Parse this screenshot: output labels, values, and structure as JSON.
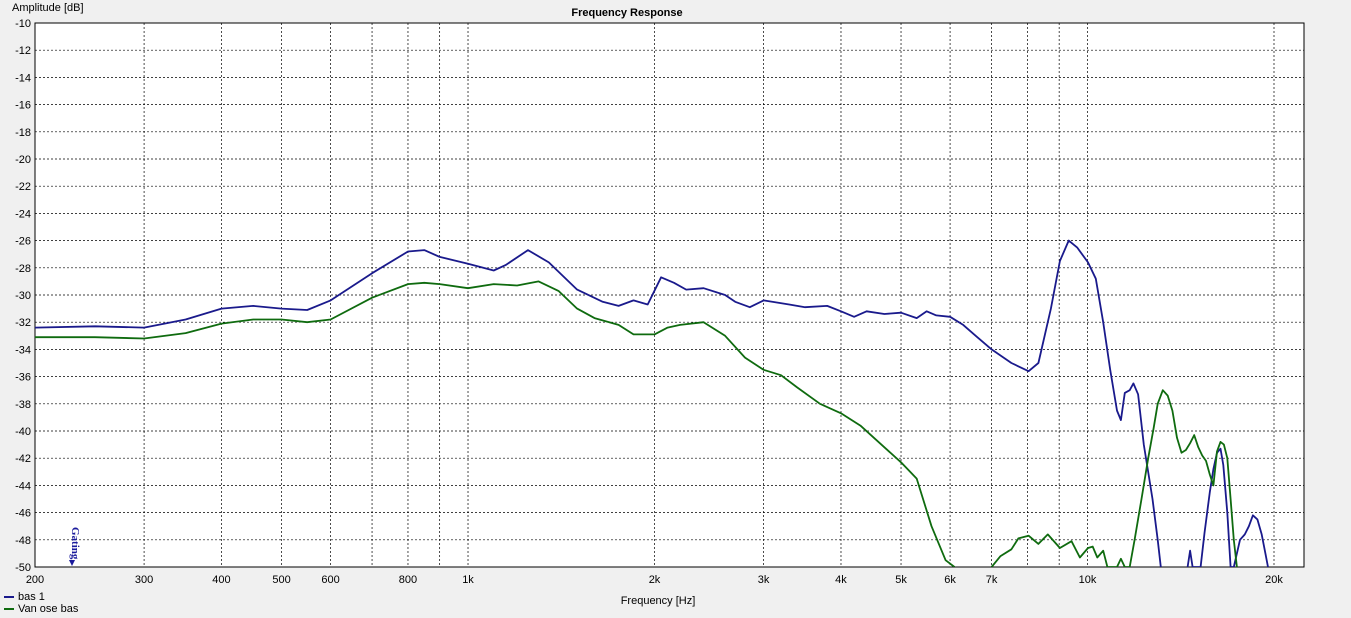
{
  "chart_data": {
    "type": "line",
    "title": "Frequency Response",
    "xlabel": "Frequency [Hz]",
    "ylabel": "Amplitude [dB]",
    "xscale": "log",
    "xlim": [
      200,
      20000
    ],
    "ylim": [
      -50,
      -10
    ],
    "grid": true,
    "legend_position": "bottom-left",
    "y_ticks": [
      "-10",
      "-12",
      "-14",
      "-16",
      "-18",
      "-20",
      "-22",
      "-24",
      "-26",
      "-28",
      "-30",
      "-32",
      "-34",
      "-36",
      "-38",
      "-40",
      "-42",
      "-44",
      "-46",
      "-48",
      "-50"
    ],
    "x_ticks": [
      {
        "value": 200,
        "label": "200"
      },
      {
        "value": 300,
        "label": "300"
      },
      {
        "value": 400,
        "label": "400"
      },
      {
        "value": 500,
        "label": "500"
      },
      {
        "value": 600,
        "label": "600"
      },
      {
        "value": 800,
        "label": "800"
      },
      {
        "value": 1000,
        "label": "1k"
      },
      {
        "value": 2000,
        "label": "2k"
      },
      {
        "value": 3000,
        "label": "3k"
      },
      {
        "value": 4000,
        "label": "4k"
      },
      {
        "value": 5000,
        "label": "5k"
      },
      {
        "value": 6000,
        "label": "6k"
      },
      {
        "value": 7000,
        "label": "7k"
      },
      {
        "value": 10000,
        "label": "10k"
      },
      {
        "value": 20000,
        "label": "20k"
      }
    ],
    "marker_label": "Gating",
    "series": [
      {
        "name": "bas 1",
        "color": "#1a1a8c",
        "points": [
          [
            200,
            -32.4
          ],
          [
            250,
            -32.3
          ],
          [
            300,
            -32.4
          ],
          [
            350,
            -31.8
          ],
          [
            400,
            -31.0
          ],
          [
            450,
            -30.8
          ],
          [
            500,
            -31.0
          ],
          [
            550,
            -31.1
          ],
          [
            600,
            -30.4
          ],
          [
            700,
            -28.4
          ],
          [
            800,
            -26.8
          ],
          [
            850,
            -26.7
          ],
          [
            900,
            -27.2
          ],
          [
            1000,
            -27.7
          ],
          [
            1100,
            -28.2
          ],
          [
            1150,
            -27.8
          ],
          [
            1250,
            -26.7
          ],
          [
            1350,
            -27.6
          ],
          [
            1500,
            -29.6
          ],
          [
            1650,
            -30.5
          ],
          [
            1750,
            -30.8
          ],
          [
            1850,
            -30.4
          ],
          [
            1950,
            -30.7
          ],
          [
            2050,
            -28.7
          ],
          [
            2150,
            -29.1
          ],
          [
            2250,
            -29.6
          ],
          [
            2400,
            -29.5
          ],
          [
            2600,
            -30.0
          ],
          [
            2700,
            -30.5
          ],
          [
            2850,
            -30.9
          ],
          [
            3000,
            -30.4
          ],
          [
            3300,
            -30.7
          ],
          [
            3500,
            -30.9
          ],
          [
            3800,
            -30.8
          ],
          [
            4000,
            -31.2
          ],
          [
            4200,
            -31.6
          ],
          [
            4400,
            -31.2
          ],
          [
            4700,
            -31.4
          ],
          [
            5000,
            -31.3
          ],
          [
            5300,
            -31.7
          ],
          [
            5500,
            -31.2
          ],
          [
            5700,
            -31.5
          ],
          [
            6000,
            -31.6
          ],
          [
            6300,
            -32.2
          ],
          [
            6600,
            -33.0
          ],
          [
            7000,
            -34.0
          ],
          [
            7500,
            -35.0
          ],
          [
            8000,
            -35.6
          ],
          [
            8300,
            -35.0
          ],
          [
            8700,
            -31.0
          ],
          [
            9000,
            -27.5
          ],
          [
            9300,
            -26.0
          ],
          [
            9600,
            -26.5
          ],
          [
            10000,
            -27.6
          ],
          [
            10500,
            -28.8
          ],
          [
            11000,
            -32.0
          ],
          [
            11500,
            -35.5
          ],
          [
            12000,
            -38.5
          ],
          [
            12300,
            -39.2
          ],
          [
            12600,
            -37.2
          ],
          [
            13000,
            -37.0
          ],
          [
            13300,
            -36.5
          ],
          [
            13700,
            -37.3
          ],
          [
            14200,
            -41.0
          ],
          [
            15000,
            -45.0
          ],
          [
            15500,
            -48.0
          ],
          [
            15800,
            -50.0
          ]
        ],
        "segments2": [
          [
            18700,
            -50.0
          ],
          [
            19000,
            -48.8
          ],
          [
            19300,
            -50.0
          ],
          [
            20300,
            -50.0
          ],
          [
            20800,
            -47.5
          ],
          [
            21500,
            -44.5
          ],
          [
            22000,
            -42.8
          ],
          [
            22500,
            -41.6
          ],
          [
            23000,
            -41.3
          ],
          [
            23400,
            -42.5
          ],
          [
            24000,
            -46.0
          ],
          [
            24500,
            -50.0
          ],
          [
            25000,
            -50.0
          ],
          [
            25500,
            -49.0
          ],
          [
            26000,
            -48.0
          ],
          [
            26800,
            -47.6
          ],
          [
            27500,
            -47.0
          ],
          [
            28200,
            -46.2
          ],
          [
            29000,
            -46.5
          ],
          [
            29800,
            -47.6
          ],
          [
            30500,
            -49.0
          ],
          [
            31000,
            -50.0
          ]
        ]
      },
      {
        "name": "Van ose bas",
        "color": "#0f6b0f",
        "points": [
          [
            200,
            -33.1
          ],
          [
            250,
            -33.1
          ],
          [
            300,
            -33.2
          ],
          [
            350,
            -32.8
          ],
          [
            400,
            -32.1
          ],
          [
            450,
            -31.8
          ],
          [
            500,
            -31.8
          ],
          [
            550,
            -32.0
          ],
          [
            600,
            -31.8
          ],
          [
            700,
            -30.2
          ],
          [
            800,
            -29.2
          ],
          [
            850,
            -29.1
          ],
          [
            900,
            -29.2
          ],
          [
            1000,
            -29.5
          ],
          [
            1100,
            -29.2
          ],
          [
            1200,
            -29.3
          ],
          [
            1300,
            -29.0
          ],
          [
            1400,
            -29.7
          ],
          [
            1500,
            -31.0
          ],
          [
            1600,
            -31.7
          ],
          [
            1750,
            -32.2
          ],
          [
            1850,
            -32.9
          ],
          [
            2000,
            -32.9
          ],
          [
            2100,
            -32.4
          ],
          [
            2200,
            -32.2
          ],
          [
            2400,
            -32.0
          ],
          [
            2600,
            -33.0
          ],
          [
            2800,
            -34.6
          ],
          [
            3000,
            -35.5
          ],
          [
            3200,
            -35.9
          ],
          [
            3400,
            -36.8
          ],
          [
            3700,
            -38.0
          ],
          [
            4000,
            -38.7
          ],
          [
            4300,
            -39.6
          ],
          [
            4700,
            -41.2
          ],
          [
            5000,
            -42.3
          ],
          [
            5300,
            -43.5
          ],
          [
            5600,
            -47.0
          ],
          [
            5900,
            -49.5
          ],
          [
            6100,
            -50.0
          ]
        ],
        "segments2": [
          [
            7000,
            -50.0
          ],
          [
            7200,
            -49.2
          ],
          [
            7500,
            -48.7
          ],
          [
            7700,
            -47.9
          ],
          [
            8000,
            -47.7
          ],
          [
            8300,
            -48.3
          ],
          [
            8600,
            -47.6
          ],
          [
            9000,
            -48.6
          ],
          [
            9400,
            -48.1
          ],
          [
            9700,
            -49.3
          ],
          [
            10000,
            -48.6
          ],
          [
            10300,
            -48.5
          ],
          [
            10600,
            -49.3
          ],
          [
            11000,
            -48.8
          ],
          [
            11300,
            -50.0
          ],
          [
            12000,
            -50.0
          ],
          [
            12300,
            -49.4
          ],
          [
            12600,
            -50.0
          ],
          [
            13000,
            -50.0
          ],
          [
            13400,
            -48.0
          ],
          [
            14000,
            -45.0
          ],
          [
            14600,
            -42.0
          ],
          [
            15100,
            -39.8
          ],
          [
            15500,
            -38.0
          ],
          [
            16000,
            -37.0
          ],
          [
            16500,
            -37.4
          ],
          [
            17000,
            -38.5
          ],
          [
            17500,
            -40.5
          ],
          [
            18000,
            -41.6
          ],
          [
            18500,
            -41.4
          ],
          [
            19000,
            -40.9
          ],
          [
            19500,
            -40.3
          ],
          [
            20000,
            -41.2
          ],
          [
            20500,
            -41.8
          ],
          [
            21000,
            -42.2
          ],
          [
            21500,
            -43.2
          ],
          [
            22000,
            -44.0
          ],
          [
            22500,
            -41.5
          ],
          [
            23000,
            -40.8
          ],
          [
            23500,
            -41.0
          ],
          [
            24000,
            -42.0
          ],
          [
            24500,
            -45.0
          ],
          [
            25000,
            -48.0
          ],
          [
            25500,
            -50.0
          ]
        ]
      }
    ]
  }
}
